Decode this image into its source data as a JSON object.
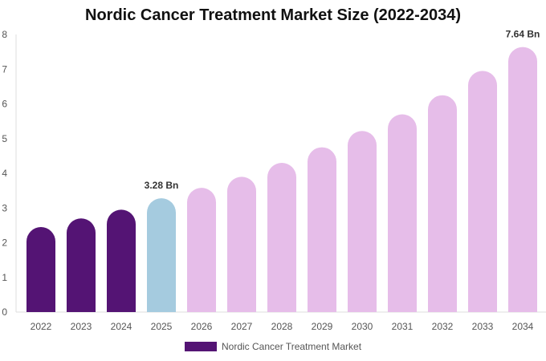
{
  "chart_data": {
    "type": "bar",
    "title": "Nordic Cancer Treatment Market Size (2022-2034)",
    "categories": [
      "2022",
      "2023",
      "2024",
      "2025",
      "2026",
      "2027",
      "2028",
      "2029",
      "2030",
      "2031",
      "2032",
      "2033",
      "2034"
    ],
    "series": [
      {
        "name": "Nordic Cancer Treatment Market",
        "values": [
          2.45,
          2.7,
          2.95,
          3.28,
          3.58,
          3.9,
          4.3,
          4.75,
          5.22,
          5.7,
          6.25,
          6.95,
          7.64
        ]
      }
    ],
    "bar_colors": [
      "#541474",
      "#541474",
      "#541474",
      "#a5cbdf",
      "#e6bde9",
      "#e6bde9",
      "#e6bde9",
      "#e6bde9",
      "#e6bde9",
      "#e6bde9",
      "#e6bde9",
      "#e6bde9",
      "#e6bde9"
    ],
    "data_labels": [
      {
        "category": "2025",
        "text": "3.28 Bn"
      },
      {
        "category": "2034",
        "text": "7.64 Bn"
      }
    ],
    "yticks": [
      "0",
      "1",
      "2",
      "3",
      "4",
      "5",
      "6",
      "7",
      "8"
    ],
    "ylim": [
      0,
      8
    ],
    "grid": false,
    "legend": {
      "position": "bottom",
      "label": "Nordic Cancer Treatment Market",
      "color": "#541474"
    }
  }
}
